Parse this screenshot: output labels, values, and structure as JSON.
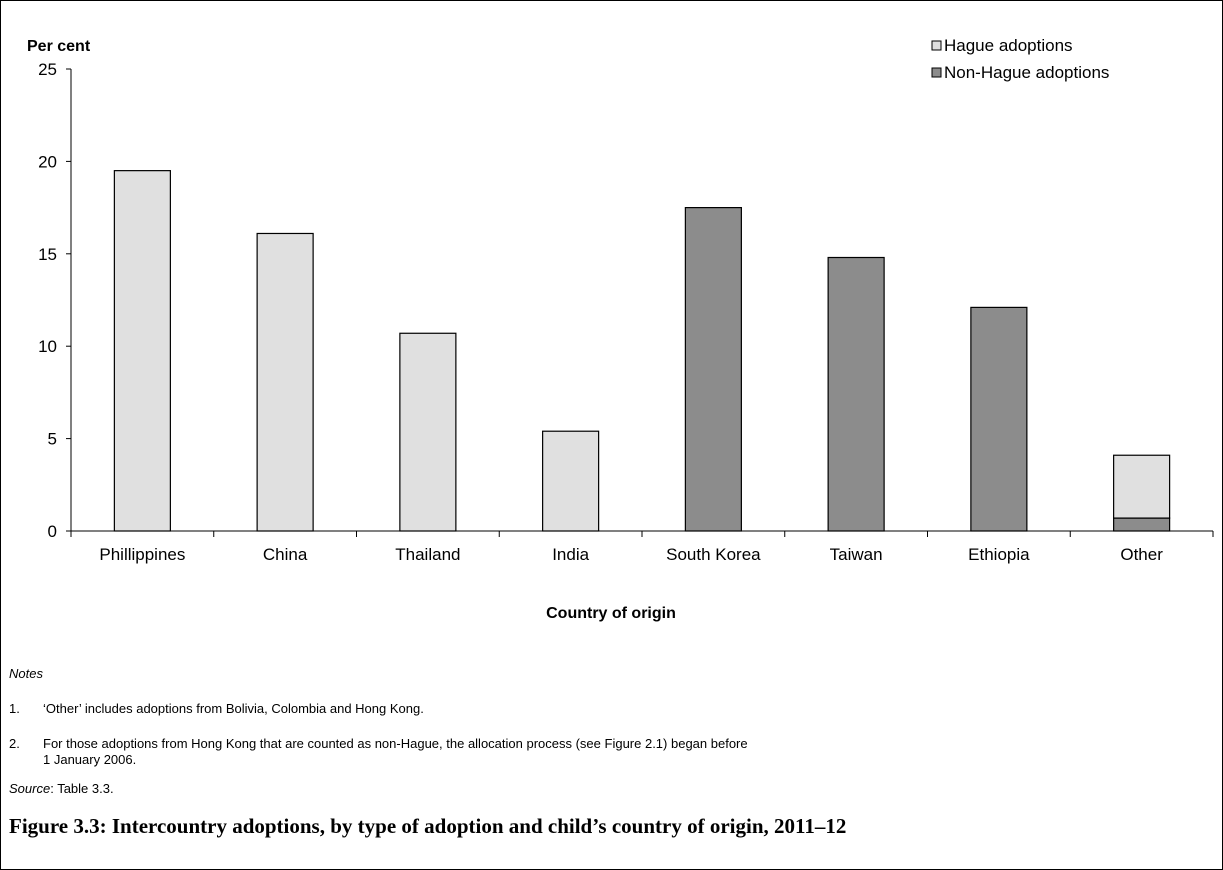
{
  "chart_data": {
    "type": "bar",
    "stacked": true,
    "categories": [
      "Phillippines",
      "China",
      "Thailand",
      "India",
      "South Korea",
      "Taiwan",
      "Ethiopia",
      "Other"
    ],
    "series": [
      {
        "name": "Hague adoptions",
        "color": "#e0e0e0",
        "values": [
          19.5,
          16.1,
          10.7,
          5.4,
          0,
          0,
          0,
          3.4
        ]
      },
      {
        "name": "Non-Hague adoptions",
        "color": "#8c8c8c",
        "values": [
          0,
          0,
          0,
          0,
          17.5,
          14.8,
          12.1,
          0.7
        ]
      }
    ],
    "ylabel": "Per cent",
    "xlabel": "Country of origin",
    "ylim": [
      0,
      25
    ],
    "yticks": [
      0,
      5,
      10,
      15,
      20,
      25
    ],
    "grid": false,
    "legend_position": "top-right"
  },
  "notes": {
    "heading": "Notes",
    "items": [
      {
        "number": "1.",
        "text": "‘Other’ includes adoptions from Bolivia, Colombia and Hong Kong."
      },
      {
        "number": "2.",
        "text_line1": "For those adoptions from Hong Kong that are counted as non-Hague, the allocation process (see Figure 2.1) began before",
        "text_line2": "1 January 2006."
      }
    ]
  },
  "source": {
    "label": "Source",
    "text": ": Table 3.3."
  },
  "caption": "Figure 3.3: Intercountry adoptions, by type of adoption and child’s country of origin, 2011–12"
}
